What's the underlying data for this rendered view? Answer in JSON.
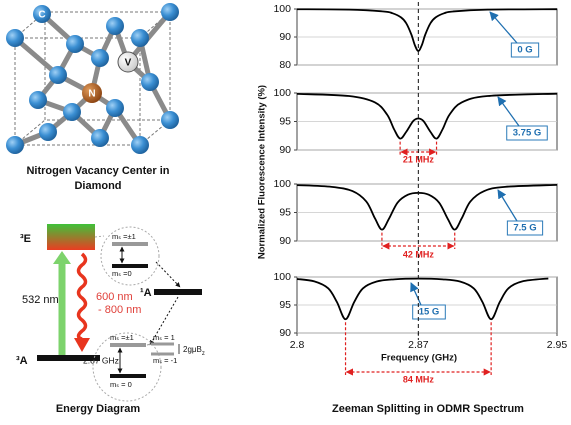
{
  "crystal": {
    "atoms": [
      "C",
      "V",
      "N"
    ],
    "caption_lines": [
      "Nitrogen Vacancy Center in",
      "Diamond"
    ]
  },
  "energy_diagram": {
    "excited_state": "³E",
    "singlet_state": "¹A",
    "ground_state": "³A",
    "excitation": "532 nm",
    "emission_lines": [
      "600 nm",
      "- 800 nm"
    ],
    "upper_sublevels": [
      "mₛ =±1",
      "mₛ =0"
    ],
    "lower_sublevels": [
      "mₛ =±1",
      "mₛ = 0"
    ],
    "zero_field_splitting": "2.87 GHz",
    "zeeman_sublevels": [
      "mₛ = 1",
      "mₛ = -1"
    ],
    "zeeman_gap": {
      "text": "2gμB",
      "subscript": "z"
    },
    "caption": "Energy Diagram"
  },
  "spectrum": {
    "ylabel": "Normalized Fluorescence Intensity (%)",
    "caption": "Zeeman Splitting in ODMR Spectrum",
    "reference_x": 2.87
  },
  "chart_data": [
    {
      "type": "line",
      "annotation": "0 G",
      "color": "#000000",
      "x": [
        2.8,
        2.83,
        2.85,
        2.855,
        2.86,
        2.863,
        2.866,
        2.868,
        2.87,
        2.872,
        2.874,
        2.877,
        2.88,
        2.885,
        2.89,
        2.91,
        2.95
      ],
      "values": [
        99.92,
        99.77,
        99.12,
        98.5,
        97,
        94.93,
        90.85,
        87.07,
        85,
        87.07,
        90.85,
        94.93,
        97,
        98.5,
        99.12,
        99.77,
        99.94
      ],
      "xlim": [
        2.8,
        2.95
      ],
      "ylim": [
        80,
        100
      ],
      "yticks": [
        80,
        90,
        100
      ],
      "grid": true
    },
    {
      "type": "line",
      "annotation": "3.75 G",
      "color": "#000000",
      "splitting": {
        "label": "21 MHz",
        "from": 2.8595,
        "to": 2.8805
      },
      "x": [
        2.8,
        2.83,
        2.845,
        2.852,
        2.856,
        2.8595,
        2.863,
        2.867,
        2.87,
        2.873,
        2.877,
        2.8805,
        2.884,
        2.888,
        2.895,
        2.91,
        2.95
      ],
      "values": [
        99.85,
        99.47,
        98.35,
        96.2,
        93.64,
        92,
        93.18,
        95.07,
        95.53,
        95.07,
        93.18,
        92,
        93.64,
        96.2,
        98.35,
        99.47,
        99.88
      ],
      "xlim": [
        2.8,
        2.95
      ],
      "ylim": [
        90,
        100
      ],
      "yticks": [
        90,
        95,
        100
      ],
      "grid": true
    },
    {
      "type": "line",
      "annotation": "7.5 G",
      "color": "#000000",
      "splitting": {
        "label": "42 MHz",
        "from": 2.849,
        "to": 2.891
      },
      "x": [
        2.8,
        2.82,
        2.832,
        2.84,
        2.845,
        2.849,
        2.853,
        2.858,
        2.864,
        2.87,
        2.876,
        2.882,
        2.887,
        2.891,
        2.895,
        2.9,
        2.908,
        2.92,
        2.95
      ],
      "values": [
        99.8,
        99.5,
        98.76,
        96.92,
        93.95,
        92,
        93.87,
        96.73,
        98.12,
        98.44,
        98.12,
        96.73,
        93.87,
        92,
        93.95,
        96.92,
        98.76,
        99.5,
        99.85
      ],
      "xlim": [
        2.8,
        2.95
      ],
      "ylim": [
        90,
        100
      ],
      "yticks": [
        90,
        95,
        100
      ],
      "grid": true
    },
    {
      "type": "line",
      "annotation": "15 G",
      "color": "#000000",
      "splitting": {
        "label": "84 MHz",
        "from": 2.828,
        "to": 2.912
      },
      "x": [
        2.8,
        2.81,
        2.818,
        2.823,
        2.828,
        2.833,
        2.838,
        2.846,
        2.856,
        2.87,
        2.884,
        2.894,
        2.902,
        2.907,
        2.912,
        2.917,
        2.922,
        2.93,
        2.945
      ],
      "values": [
        99.65,
        99.22,
        97.98,
        95.54,
        92.46,
        95.53,
        97.96,
        99.19,
        99.58,
        99.71,
        99.58,
        99.19,
        97.96,
        95.53,
        92.46,
        95.54,
        97.98,
        99.22,
        99.74
      ],
      "xlim": [
        2.8,
        2.95
      ],
      "ylim": [
        90,
        100
      ],
      "yticks": [
        90,
        95,
        100
      ],
      "grid": true,
      "xticks": [
        2.8,
        2.87,
        2.95
      ],
      "xlabel": "Frequency (GHz)"
    }
  ]
}
